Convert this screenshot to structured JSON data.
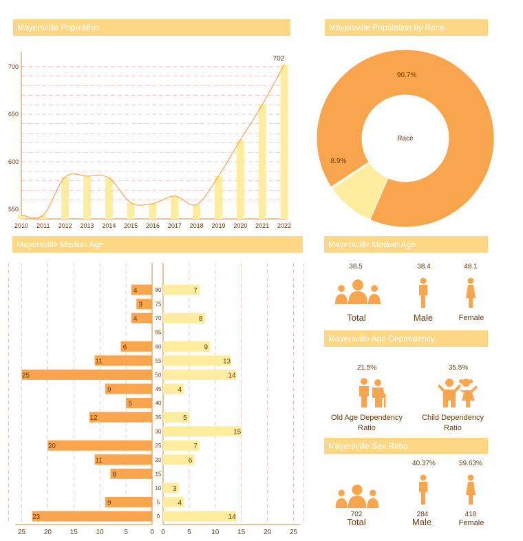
{
  "titles": {
    "population": "Mayersville Population",
    "race": "Mayersville Population by Race",
    "median_age_chart": "Mayersville Median Age",
    "median_age": "Mayersville Median Age",
    "dependency": "Mayersville Age Dependency",
    "sex_ratio": "Mayersville Sex Ratio"
  },
  "colors": {
    "dark": "#f8a54d",
    "light": "#feec9f",
    "banner": "#fdd783",
    "grid": "#f7b6b6"
  },
  "chart_data": [
    {
      "type": "bar",
      "title": "Mayersville Population",
      "categories": [
        "2010",
        "2011",
        "2012",
        "2013",
        "2014",
        "2015",
        "2016",
        "2017",
        "2018",
        "2019",
        "2020",
        "2021",
        "2022"
      ],
      "values": [
        544,
        544,
        584,
        585,
        583,
        557,
        556,
        564,
        555,
        585,
        623,
        660,
        702
      ],
      "ylim": [
        540,
        710
      ],
      "yticks": [
        550,
        600,
        650,
        700
      ],
      "annotation": "702"
    },
    {
      "type": "pie",
      "title": "Mayersville Population by Race",
      "center_label": "Race",
      "slices": [
        {
          "label": "90.7%",
          "value": 90.7
        },
        {
          "label": "8.9%",
          "value": 8.9
        },
        {
          "label": "",
          "value": 0.4
        }
      ]
    },
    {
      "type": "bar",
      "title": "Mayersville Median Age",
      "categories": [
        "0",
        "5",
        "10",
        "15",
        "20",
        "25",
        "30",
        "35",
        "40",
        "45",
        "50",
        "55",
        "60",
        "65",
        "70",
        "75",
        "80"
      ],
      "series": [
        {
          "values": [
            23,
            9,
            null,
            8,
            11,
            20,
            null,
            12,
            5,
            9,
            25,
            11,
            6,
            null,
            4,
            3,
            4
          ]
        },
        {
          "values": [
            14,
            4,
            3,
            null,
            6,
            7,
            15,
            5,
            null,
            4,
            14,
            13,
            9,
            null,
            8,
            null,
            7
          ]
        }
      ],
      "xticks_left": [
        "25",
        "20",
        "15",
        "10",
        "5",
        "0"
      ],
      "xticks_right": [
        "0",
        "5",
        "10",
        "15",
        "20",
        "25"
      ]
    }
  ],
  "median_age": {
    "total": {
      "value": "38.5",
      "label": "Total"
    },
    "male": {
      "value": "38.4",
      "label": "Male"
    },
    "female": {
      "value": "48.1",
      "label": "Female"
    }
  },
  "dependency": {
    "old": {
      "value": "21.5%",
      "label1": "Old Age Dependency",
      "label2": "Ratio"
    },
    "child": {
      "value": "35.5%",
      "label1": "Child Dependency",
      "label2": "Ratio"
    }
  },
  "sex_ratio": {
    "total": {
      "value": "702",
      "label": "Total"
    },
    "male": {
      "pct": "40.37%",
      "value": "284",
      "label": "Male"
    },
    "female": {
      "pct": "59.63%",
      "value": "418",
      "label": "Female"
    }
  }
}
